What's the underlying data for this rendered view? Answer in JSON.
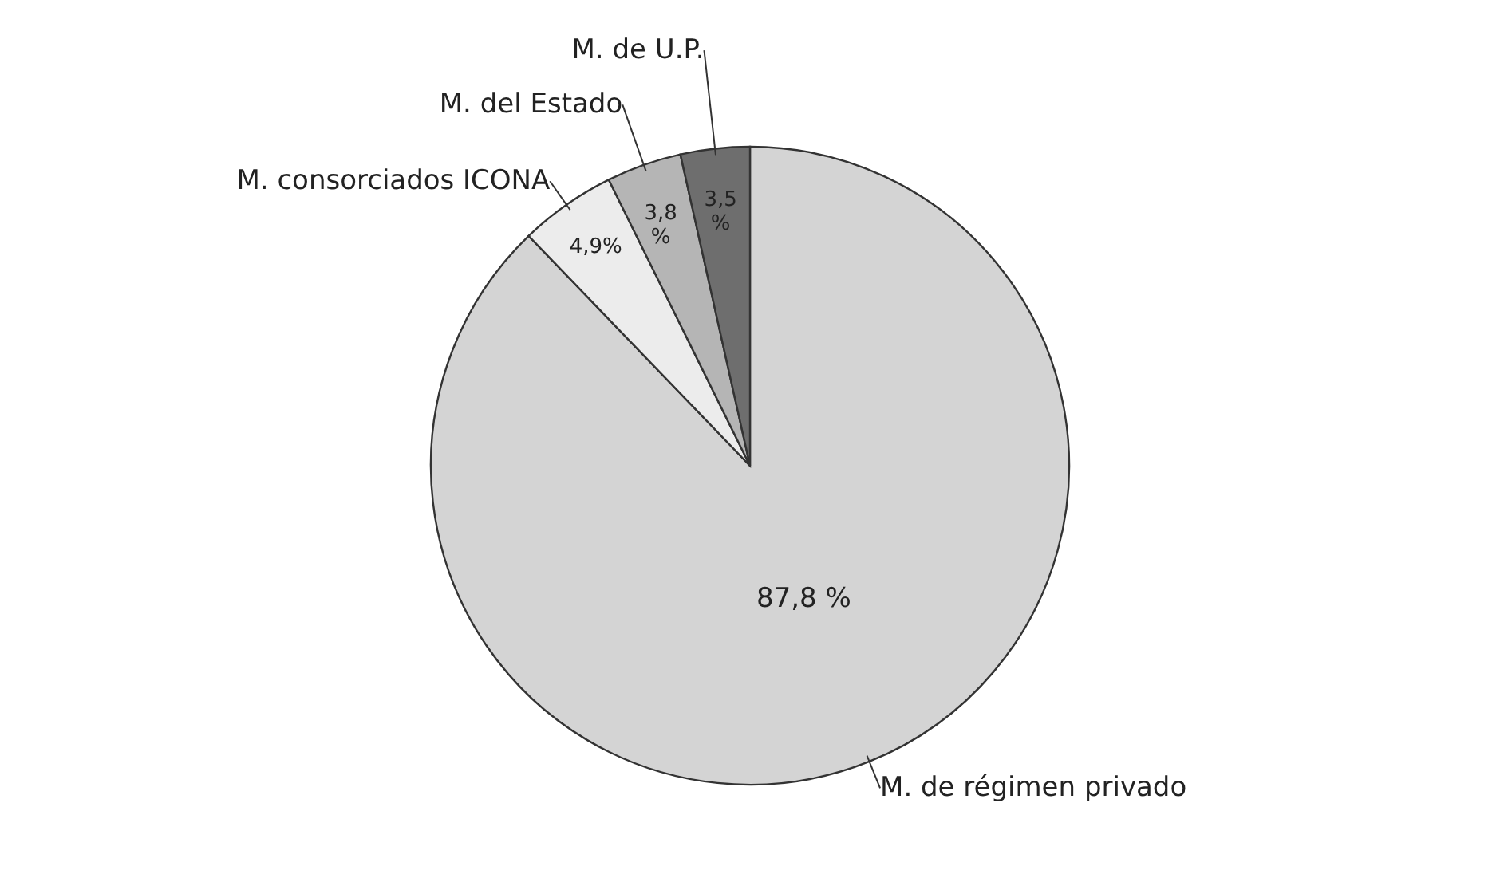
{
  "chart_data": {
    "type": "pie",
    "categories": [
      "M. de régimen privado",
      "M. consorciados ICONA",
      "M. del Estado",
      "M. de U.P."
    ],
    "values": [
      87.8,
      4.9,
      3.8,
      3.5
    ],
    "colors": [
      "#d4d4d4",
      "#ececec",
      "#b5b5b5",
      "#6e6e6e"
    ],
    "value_labels": [
      "87,8 %",
      "4,9%",
      "3,8 %",
      "3,5 %"
    ]
  }
}
